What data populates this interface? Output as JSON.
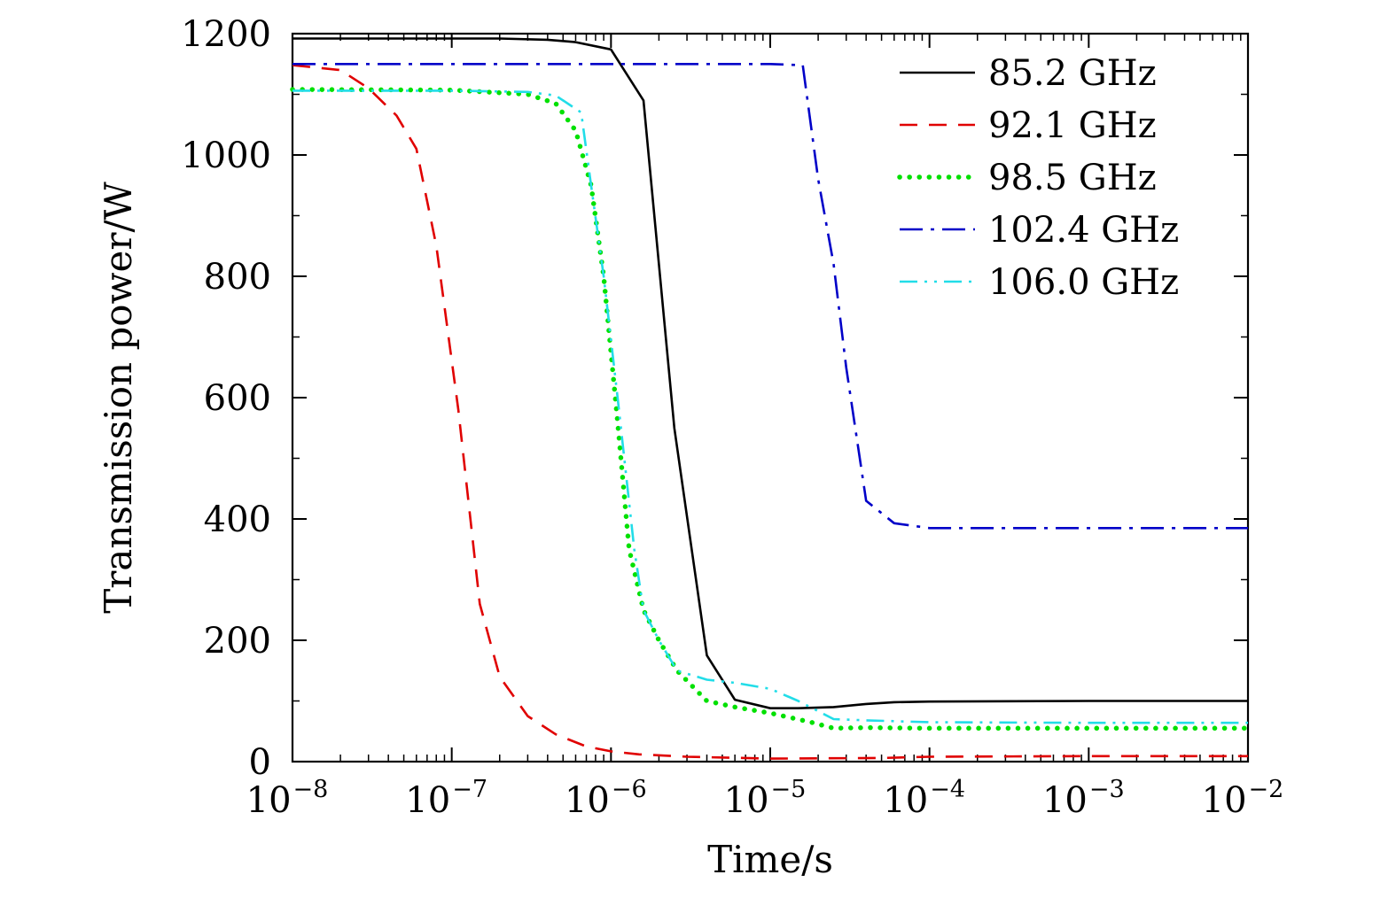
{
  "chart_data": {
    "type": "line",
    "title": "",
    "xlabel": "Time/s",
    "ylabel": "Transmission power/W",
    "xscale": "log",
    "xlim": [
      1e-08,
      0.01
    ],
    "ylim": [
      0,
      1200
    ],
    "grid": false,
    "legend_position": "top-right",
    "x_ticks": [
      {
        "base": "10",
        "exp": "−8",
        "value": 1e-08
      },
      {
        "base": "10",
        "exp": "−7",
        "value": 1e-07
      },
      {
        "base": "10",
        "exp": "−6",
        "value": 1e-06
      },
      {
        "base": "10",
        "exp": "−5",
        "value": 1e-05
      },
      {
        "base": "10",
        "exp": "−4",
        "value": 0.0001
      },
      {
        "base": "10",
        "exp": "−3",
        "value": 0.001
      },
      {
        "base": "10",
        "exp": "−2",
        "value": 0.01
      }
    ],
    "y_ticks": [
      "0",
      "200",
      "400",
      "600",
      "800",
      "1000",
      "1200"
    ],
    "series": [
      {
        "name": "85.2 GHz",
        "color": "#000000",
        "style": "solid",
        "x": [
          1e-08,
          1e-07,
          2e-07,
          4e-07,
          6e-07,
          1e-06,
          1.6e-06,
          2.5e-06,
          4e-06,
          6e-06,
          1e-05,
          1.5e-05,
          2.5e-05,
          4e-05,
          6e-05,
          0.0001,
          0.001,
          0.01
        ],
        "y": [
          1192,
          1192,
          1192,
          1190,
          1186,
          1174,
          1090,
          550,
          175,
          102,
          88,
          88,
          90,
          95,
          98,
          99,
          100,
          100
        ]
      },
      {
        "name": "92.1 GHz",
        "color": "#e00000",
        "style": "dashed",
        "x": [
          1e-08,
          2e-08,
          3e-08,
          4.5e-08,
          6e-08,
          8e-08,
          1.1e-07,
          1.5e-07,
          2e-07,
          3e-07,
          4.5e-07,
          7e-07,
          1e-06,
          1.5e-06,
          3e-06,
          1e-05,
          5e-05,
          0.0001,
          0.001,
          0.01
        ],
        "y": [
          1148,
          1140,
          1110,
          1065,
          1010,
          850,
          580,
          260,
          140,
          75,
          45,
          25,
          17,
          12,
          8,
          5,
          6,
          8,
          9,
          9
        ]
      },
      {
        "name": "98.5 GHz",
        "color": "#00e000",
        "style": "dotted",
        "x": [
          1e-08,
          1e-07,
          3e-07,
          4.5e-07,
          6e-07,
          7.5e-07,
          9e-07,
          1.1e-06,
          1.3e-06,
          1.6e-06,
          2e-06,
          2.6e-06,
          4e-06,
          6e-06,
          1e-05,
          1.8e-05,
          2.5e-05,
          4e-05,
          0.0001,
          0.001,
          0.01
        ],
        "y": [
          1108,
          1107,
          1100,
          1085,
          1040,
          950,
          800,
          560,
          350,
          250,
          200,
          150,
          100,
          90,
          80,
          65,
          55,
          56,
          55,
          55,
          55
        ]
      },
      {
        "name": "102.4 GHz",
        "color": "#0000c8",
        "style": "dashdot",
        "x": [
          1e-08,
          1e-06,
          1e-05,
          1.6e-05,
          2e-05,
          2.5e-05,
          3e-05,
          4e-05,
          6e-05,
          0.0001,
          0.001,
          0.01
        ],
        "y": [
          1150,
          1150,
          1150,
          1148,
          960,
          820,
          650,
          430,
          393,
          385,
          385,
          385
        ]
      },
      {
        "name": "106.0 GHz",
        "color": "#22dde8",
        "style": "dashdotdot",
        "x": [
          1e-08,
          1e-07,
          3e-07,
          4.5e-07,
          6.5e-07,
          7.5e-07,
          9e-07,
          1.1e-06,
          1.4e-06,
          1.6e-06,
          2e-06,
          2.6e-06,
          4e-06,
          6e-06,
          1e-05,
          1.5e-05,
          2.5e-05,
          4e-05,
          0.0001,
          0.001,
          0.01
        ],
        "y": [
          1106,
          1106,
          1104,
          1098,
          1070,
          950,
          800,
          600,
          350,
          250,
          200,
          150,
          135,
          130,
          120,
          100,
          70,
          68,
          65,
          64,
          64
        ]
      }
    ]
  }
}
